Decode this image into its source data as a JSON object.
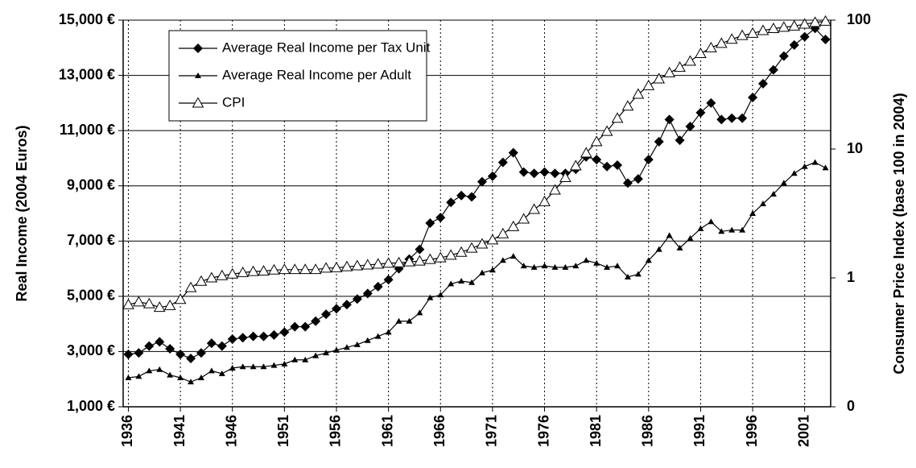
{
  "chart_data": {
    "type": "line",
    "x": [
      1936,
      1937,
      1938,
      1939,
      1940,
      1941,
      1942,
      1943,
      1944,
      1945,
      1946,
      1947,
      1948,
      1949,
      1950,
      1951,
      1952,
      1953,
      1954,
      1955,
      1956,
      1957,
      1958,
      1959,
      1960,
      1961,
      1962,
      1963,
      1964,
      1965,
      1966,
      1967,
      1968,
      1969,
      1970,
      1971,
      1972,
      1973,
      1974,
      1975,
      1976,
      1977,
      1978,
      1979,
      1980,
      1981,
      1982,
      1983,
      1984,
      1985,
      1986,
      1987,
      1988,
      1989,
      1990,
      1991,
      1992,
      1993,
      1994,
      1995,
      1996,
      1997,
      1998,
      1999,
      2000,
      2001,
      2002,
      2003
    ],
    "xlim": [
      1935.5,
      2003.5
    ],
    "xticks": [
      1936,
      1941,
      1946,
      1951,
      1956,
      1961,
      1966,
      1971,
      1976,
      1981,
      1986,
      1991,
      1996,
      2001
    ],
    "ylim": [
      1000,
      15000
    ],
    "yticks": [
      {
        "value": 1000,
        "label": "1,000 €"
      },
      {
        "value": 3000,
        "label": "3,000 €"
      },
      {
        "value": 5000,
        "label": "5,000 €"
      },
      {
        "value": 7000,
        "label": "7,000 €"
      },
      {
        "value": 9000,
        "label": "9,000 €"
      },
      {
        "value": 11000,
        "label": "11,000 €"
      },
      {
        "value": 13000,
        "label": "13,000 €"
      },
      {
        "value": 15000,
        "label": "15,000 €"
      }
    ],
    "y2lim": [
      0.1,
      100
    ],
    "y2scale": "log",
    "y2ticks": [
      {
        "value": 0.1,
        "label": "0"
      },
      1,
      10,
      100
    ],
    "ylabel": "Real Income (2004 Euros)",
    "y2label": "Consumer Price Index (base 100 in 2004)",
    "grid": true,
    "legend": "upper left",
    "series": [
      {
        "name": "Average Real Income per Tax Unit",
        "color": "#000000",
        "marker": "diamond",
        "values": [
          2900,
          2950,
          3200,
          3350,
          3100,
          2900,
          2750,
          2950,
          3300,
          3200,
          3450,
          3500,
          3550,
          3550,
          3600,
          3700,
          3900,
          3900,
          4100,
          4350,
          4550,
          4700,
          4900,
          5100,
          5350,
          5600,
          6000,
          6350,
          6700,
          7650,
          7850,
          8400,
          8650,
          8600,
          9150,
          9350,
          9850,
          10200,
          9500,
          9450,
          9500,
          9450,
          9450,
          9600,
          10050,
          9950,
          9700,
          9750,
          9100,
          9250,
          9950,
          10600,
          11400,
          10650,
          11150,
          11650,
          12000,
          11400,
          11450,
          11450,
          12200,
          12700,
          13200,
          13700,
          14100,
          14400,
          14700,
          14300
        ]
      },
      {
        "name": "Average Real Income per Adult",
        "color": "#000000",
        "marker": "triangle",
        "values": [
          2050,
          2100,
          2300,
          2350,
          2150,
          2050,
          1900,
          2050,
          2300,
          2200,
          2400,
          2450,
          2450,
          2450,
          2500,
          2550,
          2700,
          2700,
          2850,
          2950,
          3050,
          3150,
          3250,
          3400,
          3550,
          3700,
          4100,
          4100,
          4400,
          4950,
          5050,
          5450,
          5550,
          5500,
          5850,
          5950,
          6300,
          6450,
          6100,
          6050,
          6100,
          6050,
          6050,
          6100,
          6300,
          6200,
          6050,
          6100,
          5700,
          5800,
          6300,
          6700,
          7200,
          6750,
          7100,
          7450,
          7700,
          7350,
          7400,
          7400,
          8000,
          8350,
          8700,
          9100,
          9450,
          9700,
          9850,
          9650
        ]
      },
      {
        "name": "CPI",
        "color": "#000000",
        "marker": "open-triangle",
        "axis": "y2",
        "values": [
          0.62,
          0.65,
          0.63,
          0.59,
          0.61,
          0.68,
          0.84,
          0.94,
          1.0,
          1.04,
          1.07,
          1.1,
          1.12,
          1.13,
          1.15,
          1.16,
          1.16,
          1.16,
          1.16,
          1.19,
          1.2,
          1.22,
          1.24,
          1.26,
          1.28,
          1.3,
          1.31,
          1.33,
          1.35,
          1.39,
          1.43,
          1.5,
          1.58,
          1.7,
          1.83,
          1.97,
          2.2,
          2.5,
          2.86,
          3.4,
          3.9,
          4.8,
          6.0,
          7.4,
          9.3,
          11.4,
          13.7,
          17.3,
          21.5,
          26.6,
          31,
          35,
          39,
          43,
          48,
          55,
          61,
          66,
          71,
          76,
          79,
          83,
          86,
          88,
          90,
          93,
          96,
          98
        ]
      }
    ]
  }
}
